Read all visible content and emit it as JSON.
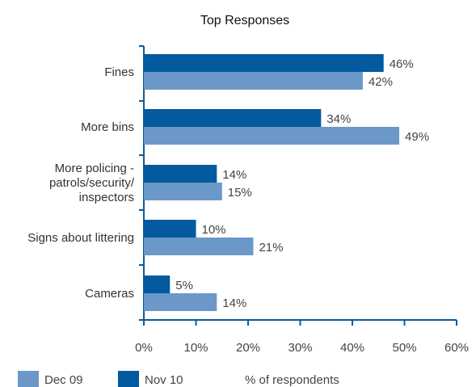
{
  "chart_data": {
    "type": "bar",
    "orientation": "horizontal",
    "title": "Top Responses",
    "xlabel": "% of respondents",
    "ylabel": "",
    "categories": [
      [
        "Fines"
      ],
      [
        "More bins"
      ],
      [
        "More policing -",
        "patrols/security/",
        "inspectors"
      ],
      [
        "Signs about littering"
      ],
      [
        "Cameras"
      ]
    ],
    "series": [
      {
        "name": "Nov 10",
        "color": "#035a9e",
        "values": [
          46,
          34,
          14,
          10,
          5
        ],
        "labels": [
          "46%",
          "34%",
          "14%",
          "10%",
          "5%"
        ]
      },
      {
        "name": "Dec 09",
        "color": "#6b98c8",
        "values": [
          42,
          49,
          15,
          21,
          14
        ],
        "labels": [
          "42%",
          "49%",
          "15%",
          "21%",
          "14%"
        ]
      }
    ],
    "xlim": [
      0,
      60
    ],
    "xticks": [
      0,
      10,
      20,
      30,
      40,
      50,
      60
    ],
    "xtick_labels": [
      "0%",
      "10%",
      "20%",
      "30%",
      "40%",
      "50%",
      "60%"
    ],
    "legend_order": [
      "Dec 09",
      "Nov 10"
    ],
    "legend_position": "bottom-left",
    "grid": false,
    "axis_color": "#0b5a9c"
  }
}
